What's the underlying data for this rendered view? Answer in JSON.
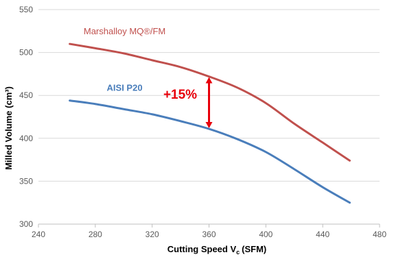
{
  "colors": {
    "grid": "#d9d9d9",
    "axis": "#bfbfbf",
    "series_marshalloy": "#c0504d",
    "series_aisi": "#4a7ebb",
    "annotation": "#e8000b"
  },
  "chart_data": {
    "type": "line",
    "title": "",
    "xlabel": "Cutting Speed V",
    "xlabel_subscript": "c",
    "xlabel_unit": "(SFM)",
    "ylabel": "Milled Volume (cm³)",
    "xlim": [
      240,
      480
    ],
    "ylim": [
      300,
      550
    ],
    "x_ticks": [
      240,
      280,
      320,
      360,
      400,
      440,
      480
    ],
    "y_ticks": [
      300,
      350,
      400,
      450,
      500,
      550
    ],
    "grid": "horizontal",
    "series": [
      {
        "name": "Marshalloy MQ®/FM",
        "color": "#c0504d",
        "x": [
          262,
          280,
          300,
          320,
          340,
          360,
          380,
          400,
          420,
          440,
          459
        ],
        "y": [
          510,
          505,
          499,
          491,
          483,
          472,
          459,
          441,
          417,
          395,
          374
        ]
      },
      {
        "name": "AISI P20",
        "color": "#4a7ebb",
        "x": [
          262,
          280,
          300,
          320,
          340,
          360,
          380,
          400,
          420,
          440,
          459
        ],
        "y": [
          444,
          440,
          434,
          428,
          420,
          411,
          399,
          384,
          364,
          343,
          325
        ]
      }
    ],
    "annotations": [
      {
        "text": "+15%",
        "x": 360,
        "y_from": 411,
        "y_to": 472,
        "type": "double-arrow"
      }
    ]
  }
}
